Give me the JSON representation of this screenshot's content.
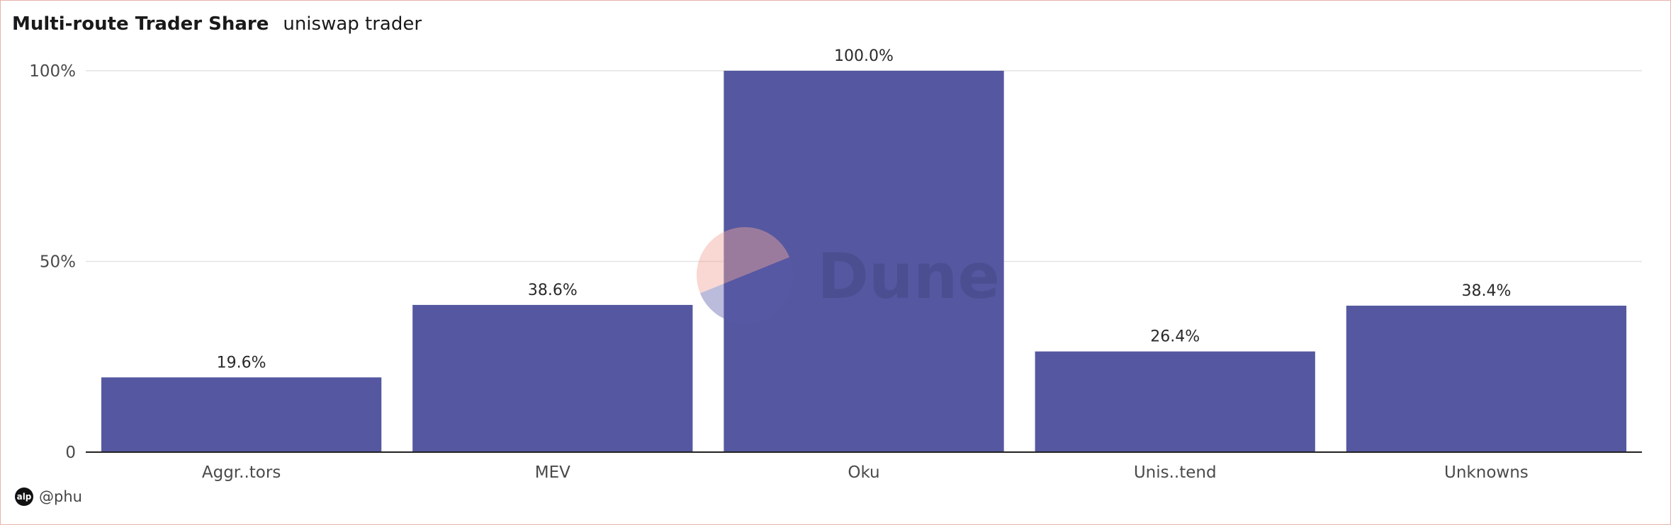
{
  "header": {
    "title": "Multi-route Trader Share",
    "subtitle": "uniswap trader"
  },
  "chart_data": {
    "type": "bar",
    "title": "Multi-route Trader Share",
    "subtitle": "uniswap trader",
    "categories": [
      "Aggr..tors",
      "MEV",
      "Oku",
      "Unis..tend",
      "Unknowns"
    ],
    "values": [
      19.6,
      38.6,
      100.0,
      26.4,
      38.4
    ],
    "value_labels": [
      "19.6%",
      "38.6%",
      "100.0%",
      "26.4%",
      "38.4%"
    ],
    "y_ticks": [
      {
        "value": 0,
        "label": "0"
      },
      {
        "value": 50,
        "label": "50%"
      },
      {
        "value": 100,
        "label": "100%"
      }
    ],
    "ylim": [
      0,
      100
    ],
    "grid": true,
    "bar_color": "#5558a0",
    "xlabel": "",
    "ylabel": ""
  },
  "watermark": {
    "text": "Dune",
    "circle_color_top": "#f2a79b",
    "circle_color_bottom": "#5a5aa8"
  },
  "footer": {
    "avatar_text": "alp",
    "handle": "@phu"
  }
}
